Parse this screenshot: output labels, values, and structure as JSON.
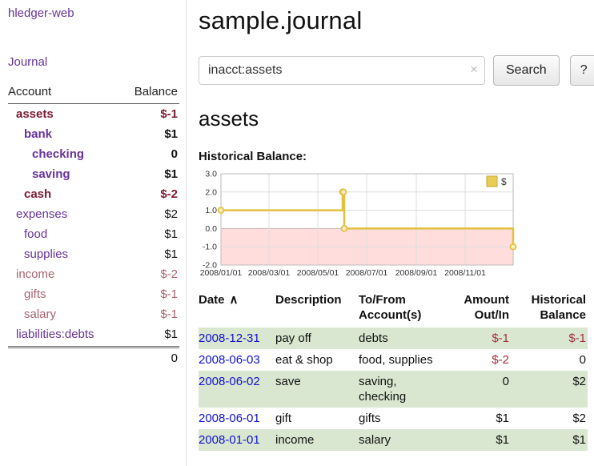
{
  "colors": {
    "purple_link": "#663399",
    "negative_dark": "#7b1a33",
    "negative_soft": "#a86270",
    "date_link": "#1111cc",
    "amount_negative": "#a22f3f",
    "row_stripe_green": "#d9e7d0",
    "chart_line_yellow": "#e2c13f",
    "chart_negative_fill": "#ffdddd"
  },
  "sidebar": {
    "app_title": "hledger-web",
    "journal_link": "Journal",
    "accounts_table": {
      "headers": {
        "account": "Account",
        "balance": "Balance"
      },
      "rows": [
        {
          "name": "assets",
          "balance": "$-1"
        },
        {
          "name": "bank",
          "balance": "$1"
        },
        {
          "name": "checking",
          "balance": "0"
        },
        {
          "name": "saving",
          "balance": "$1"
        },
        {
          "name": "cash",
          "balance": "$-2"
        },
        {
          "name": "expenses",
          "balance": "$2"
        },
        {
          "name": "food",
          "balance": "$1"
        },
        {
          "name": "supplies",
          "balance": "$1"
        },
        {
          "name": "income",
          "balance": "$-2"
        },
        {
          "name": "gifts",
          "balance": "$-1"
        },
        {
          "name": "salary",
          "balance": "$-1"
        },
        {
          "name": "liabilities:debts",
          "balance": "$1"
        }
      ],
      "total": "0"
    }
  },
  "main": {
    "page_title": "sample.journal",
    "search": {
      "value": "inacct:assets",
      "clear_icon": "×",
      "search_button": "Search",
      "help_button": "?"
    },
    "account_heading": "assets",
    "chart_title": "Historical Balance:"
  },
  "chart_data": {
    "type": "line",
    "step": true,
    "title": "Historical Balance",
    "ylim": [
      -2.0,
      3.0
    ],
    "y_ticks": [
      "3.0",
      "2.0",
      "1.0",
      "0.0",
      "-1.0",
      "-2.0"
    ],
    "x_range_days": 365,
    "x_ticks": [
      {
        "day": 0,
        "label": "2008/01/01"
      },
      {
        "day": 60,
        "label": "2008/03/01"
      },
      {
        "day": 121,
        "label": "2008/05/01"
      },
      {
        "day": 182,
        "label": "2008/07/01"
      },
      {
        "day": 244,
        "label": "2008/09/01"
      },
      {
        "day": 305,
        "label": "2008/11/01"
      }
    ],
    "series": [
      {
        "name": "$",
        "color": "#e2c13f",
        "points": [
          {
            "date": "2008-01-01",
            "x_day": 0,
            "y": 1
          },
          {
            "date": "2008-06-01",
            "x_day": 152,
            "y": 2
          },
          {
            "date": "2008-06-02",
            "x_day": 153,
            "y": 2
          },
          {
            "date": "2008-06-03",
            "x_day": 154,
            "y": 0
          },
          {
            "date": "2008-12-31",
            "x_day": 365,
            "y": -1
          }
        ]
      }
    ],
    "legend": {
      "label": "$",
      "position": "top-right"
    },
    "negative_region": true,
    "negative_region_color": "#ffdddd",
    "grid": true
  },
  "register": {
    "headers": {
      "date": "Date",
      "sort_indicator": "∧",
      "description": "Description",
      "account": "To/From Account(s)",
      "amount": "Amount Out/In",
      "balance": "Historical Balance"
    },
    "rows": [
      {
        "date": "2008-12-31",
        "description": "pay off",
        "account": "debts",
        "amount": "$-1",
        "balance": "$-1"
      },
      {
        "date": "2008-06-03",
        "description": "eat & shop",
        "account": "food, supplies",
        "amount": "$-2",
        "balance": "0"
      },
      {
        "date": "2008-06-02",
        "description": "save",
        "account": "saving, checking",
        "amount": "0",
        "balance": "$2"
      },
      {
        "date": "2008-06-01",
        "description": "gift",
        "account": "gifts",
        "amount": "$1",
        "balance": "$2"
      },
      {
        "date": "2008-01-01",
        "description": "income",
        "account": "salary",
        "amount": "$1",
        "balance": "$1"
      }
    ]
  }
}
